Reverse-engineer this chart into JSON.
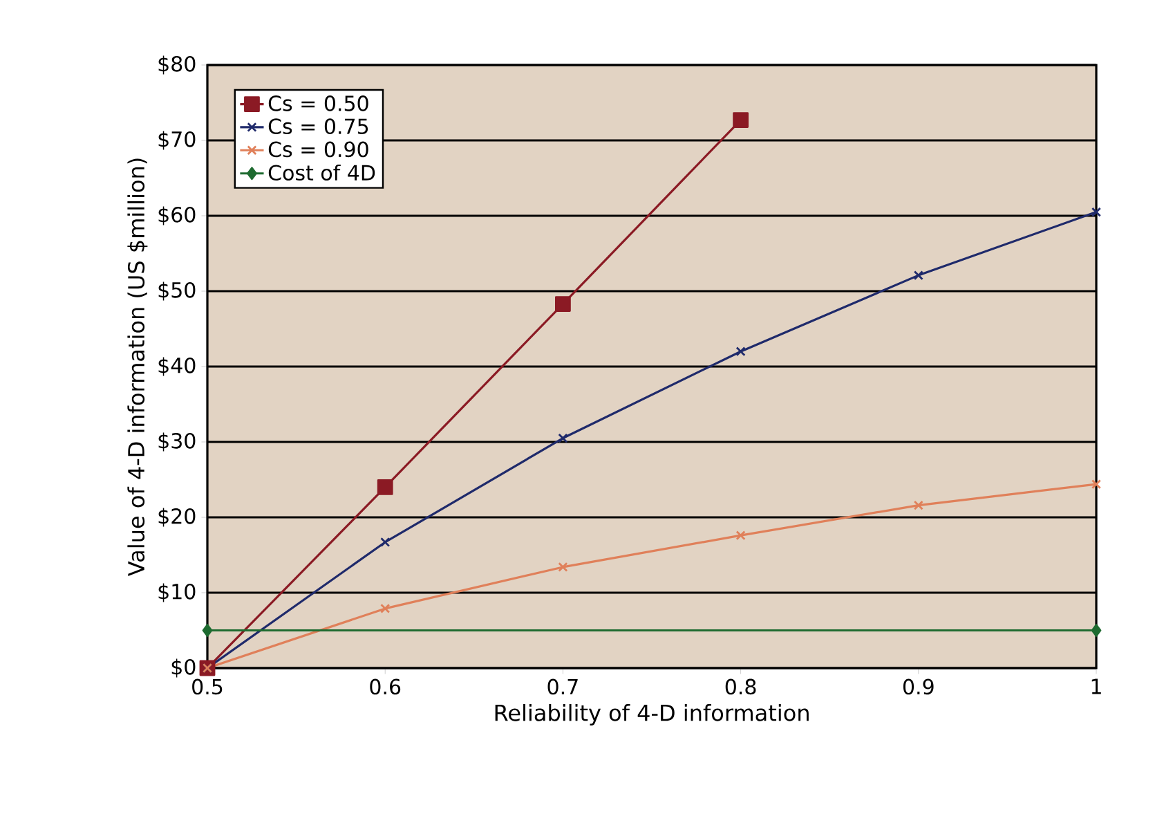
{
  "chart_data": {
    "type": "line",
    "xlabel": "Reliability of 4-D information",
    "ylabel": "Value of 4-D information (US $million)",
    "x": [
      0.5,
      0.6,
      0.7,
      0.8,
      0.9,
      1
    ],
    "series": [
      {
        "name": "Cs = 0.50",
        "color": "#8b1a24",
        "marker": "square",
        "values": [
          0,
          24,
          48.3,
          72.7,
          null,
          null
        ]
      },
      {
        "name": "Cs = 0.75",
        "color": "#1f2a6b",
        "marker": "cross",
        "values": [
          0,
          16.7,
          30.5,
          42,
          52.1,
          60.5
        ]
      },
      {
        "name": "Cs = 0.90",
        "color": "#e0805a",
        "marker": "cross",
        "values": [
          0,
          7.9,
          13.4,
          17.6,
          21.6,
          24.4
        ]
      },
      {
        "name": "Cost of 4D",
        "color": "#1e6b30",
        "marker": "diamond",
        "x": [
          0.5,
          1
        ],
        "values": [
          5,
          5
        ]
      }
    ],
    "xlim": [
      0.5,
      1
    ],
    "xticks": [
      0.5,
      0.6,
      0.7,
      0.8,
      0.9,
      1
    ],
    "ylim": [
      0,
      80
    ],
    "yticks": [
      {
        "value": 0,
        "label": "$0"
      },
      {
        "value": 10,
        "label": "$10"
      },
      {
        "value": 20,
        "label": "$20"
      },
      {
        "value": 30,
        "label": "$30"
      },
      {
        "value": 40,
        "label": "$40"
      },
      {
        "value": 50,
        "label": "$50"
      },
      {
        "value": 60,
        "label": "$60"
      },
      {
        "value": 70,
        "label": "$70"
      },
      {
        "value": 80,
        "label": "$80"
      }
    ],
    "grid": "y",
    "legend": "top left",
    "line_style": "solid"
  }
}
